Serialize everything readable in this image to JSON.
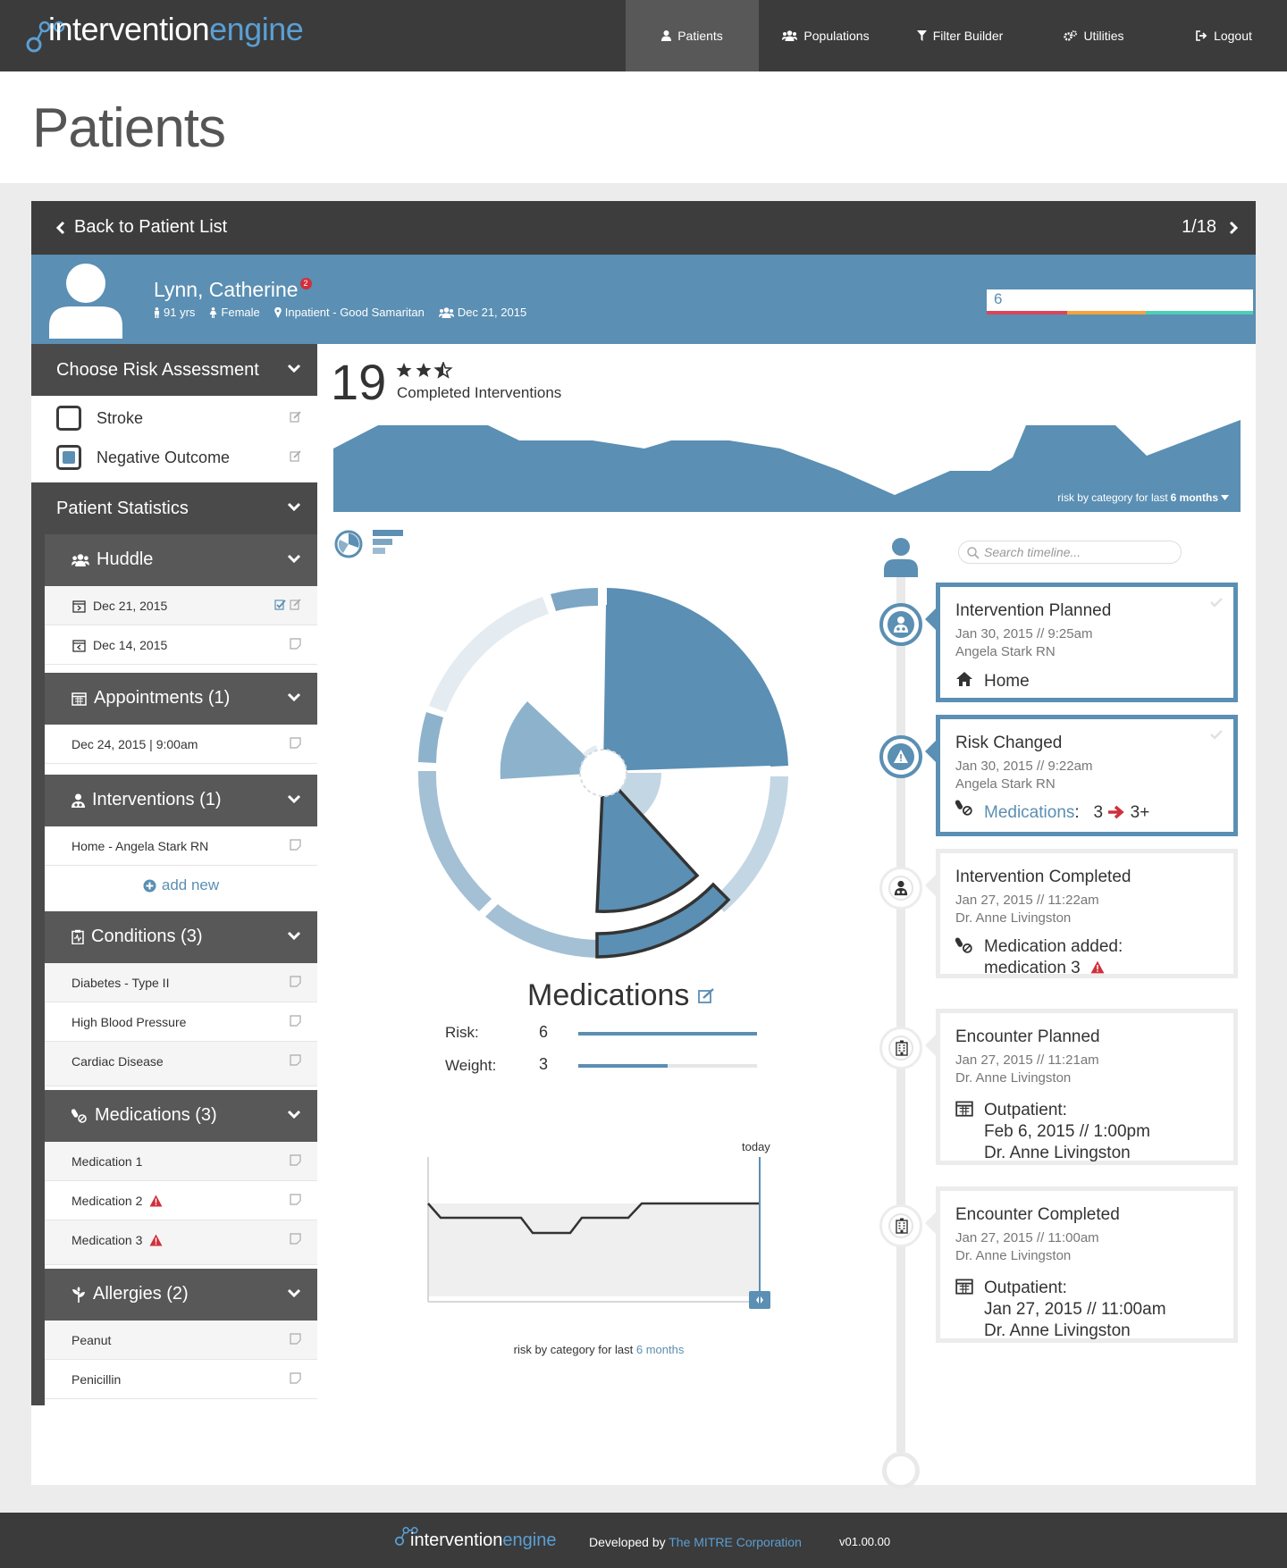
{
  "app": {
    "logo_part1": "intervention",
    "logo_part2": "engine",
    "accent": "#5b8fb3",
    "nav": [
      {
        "label": "Patients",
        "icon": "user-icon",
        "active": true
      },
      {
        "label": "Populations",
        "icon": "users-icon"
      },
      {
        "label": "Filter Builder",
        "icon": "filter-icon"
      },
      {
        "label": "Utilities",
        "icon": "gears-icon"
      },
      {
        "label": "Logout",
        "icon": "logout-icon"
      }
    ]
  },
  "page": {
    "title": "Patients"
  },
  "backbar": {
    "back_label": "Back to Patient List",
    "pager": "1/18"
  },
  "patient": {
    "name": "Lynn, Catherine",
    "notification_count": "2",
    "age": "91 yrs",
    "gender": "Female",
    "location": "Inpatient - Good Samaritan",
    "huddle_date": "Dec 21, 2015",
    "risk_score": "6"
  },
  "sidebar": {
    "risk_assessment": {
      "label": "Choose Risk Assessment",
      "options": [
        {
          "label": "Stroke",
          "checked": false
        },
        {
          "label": "Negative Outcome",
          "checked": true
        }
      ]
    },
    "stats_label": "Patient Statistics",
    "huddle": {
      "label": "Huddle",
      "items": [
        "Dec 21, 2015",
        "Dec 14, 2015"
      ]
    },
    "appointments": {
      "label": "Appointments (1)",
      "items": [
        "Dec 24, 2015 | 9:00am"
      ]
    },
    "interventions": {
      "label": "Interventions (1)",
      "items": [
        "Home - Angela Stark RN"
      ],
      "add_label": "add new"
    },
    "conditions": {
      "label": "Conditions (3)",
      "items": [
        "Diabetes - Type II",
        "High Blood Pressure",
        "Cardiac Disease"
      ]
    },
    "medications": {
      "label": "Medications (3)",
      "items": [
        "Medication 1",
        "Medication 2",
        "Medication 3"
      ]
    },
    "allergies": {
      "label": "Allergies (2)",
      "items": [
        "Peanut",
        "Penicillin"
      ]
    }
  },
  "center": {
    "completed_count": "19",
    "rating": 2.5,
    "completed_label": "Completed Interventions",
    "area_caption_prefix": "risk by category for last ",
    "area_caption_emph": "6 months",
    "category_title": "Medications",
    "risk_label": "Risk:",
    "risk_value": "6",
    "risk_fraction": 1.0,
    "weight_label": "Weight:",
    "weight_value": "3",
    "weight_fraction": 0.5,
    "today_label": "today",
    "line_caption_prefix": "risk by category for last ",
    "line_caption_emph": "6 months"
  },
  "timeline": {
    "search_placeholder": "Search timeline...",
    "events": [
      {
        "title": "Intervention Planned",
        "date": "Jan 30, 2015  //  9:25am",
        "who": "Angela Stark RN",
        "body": "Home"
      },
      {
        "title": "Risk Changed",
        "date": "Jan 30, 2015  //  9:22am",
        "who": "Angela Stark RN",
        "body_link": "Medications",
        "body_from": "3",
        "body_to": "3+"
      },
      {
        "title": "Intervention Completed",
        "date": "Jan 27, 2015  //  11:22am",
        "who": "Dr. Anne Livingston",
        "body_line1": "Medication added:",
        "body_line2": "medication 3"
      },
      {
        "title": "Encounter Planned",
        "date": "Jan 27, 2015  //  11:21am",
        "who": "Dr. Anne Livingston",
        "body_line1": "Outpatient:",
        "body_line2": "Feb 6, 2015 // 1:00pm",
        "body_line3": "Dr. Anne Livingston"
      },
      {
        "title": "Encounter Completed",
        "date": "Jan 27, 2015  //  11:00am",
        "who": "Dr. Anne Livingston",
        "body_line1": "Outpatient:",
        "body_line2": "Jan 27, 2015 // 11:00am",
        "body_line3": "Dr. Anne Livingston"
      }
    ]
  },
  "footer": {
    "logo_part1": "intervention",
    "logo_part2": "engine",
    "dev_prefix": "Developed by ",
    "dev_org": "The MITRE Corporation",
    "version": "v01.00.00"
  }
}
